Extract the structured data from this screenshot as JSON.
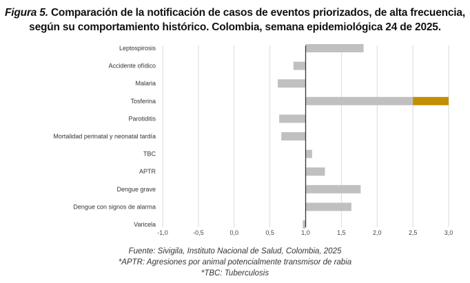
{
  "chart_data": {
    "type": "bar",
    "orientation": "horizontal",
    "title_prefix": "Figura 5.",
    "title": "Comparación de la notificación de casos de eventos priorizados, de alta frecuencia, según su comportamiento histórico. Colombia, semana epidemiológica 24 de 2025.",
    "baseline": 1.0,
    "xlim": [
      -1.0,
      3.0
    ],
    "xticks": [
      "-1,0",
      "-0,5",
      "0,0",
      "0,5",
      "1,0",
      "1,5",
      "2,0",
      "2,5",
      "3,0"
    ],
    "xtick_values": [
      -1.0,
      -0.5,
      0.0,
      0.5,
      1.0,
      1.5,
      2.0,
      2.5,
      3.0
    ],
    "grid": true,
    "categories": [
      "Leptospirosis",
      "Accidente ofídico",
      "Malaria",
      "Tosferina",
      "Parotiditis",
      "Mortalidad perinatal y neonatal tardía",
      "TBC",
      "APTR",
      "Dengue grave",
      "Dengue con signos de alarma",
      "Varicela"
    ],
    "values": [
      1.81,
      0.83,
      0.61,
      3.0,
      0.63,
      0.66,
      1.09,
      1.27,
      1.77,
      1.64,
      0.96
    ],
    "highlight_threshold": 2.5,
    "colors": {
      "bar": "#c0c0c0",
      "highlight": "#c38f00",
      "axis": "#333333",
      "grid": "#d9d9d9"
    }
  },
  "footer": {
    "source": "Fuente: Sivigila, Instituto Nacional de Salud, Colombia, 2025",
    "note1": "*APTR: Agresiones por animal potencialmente transmisor de rabia",
    "note2": "*TBC: Tuberculosis"
  }
}
